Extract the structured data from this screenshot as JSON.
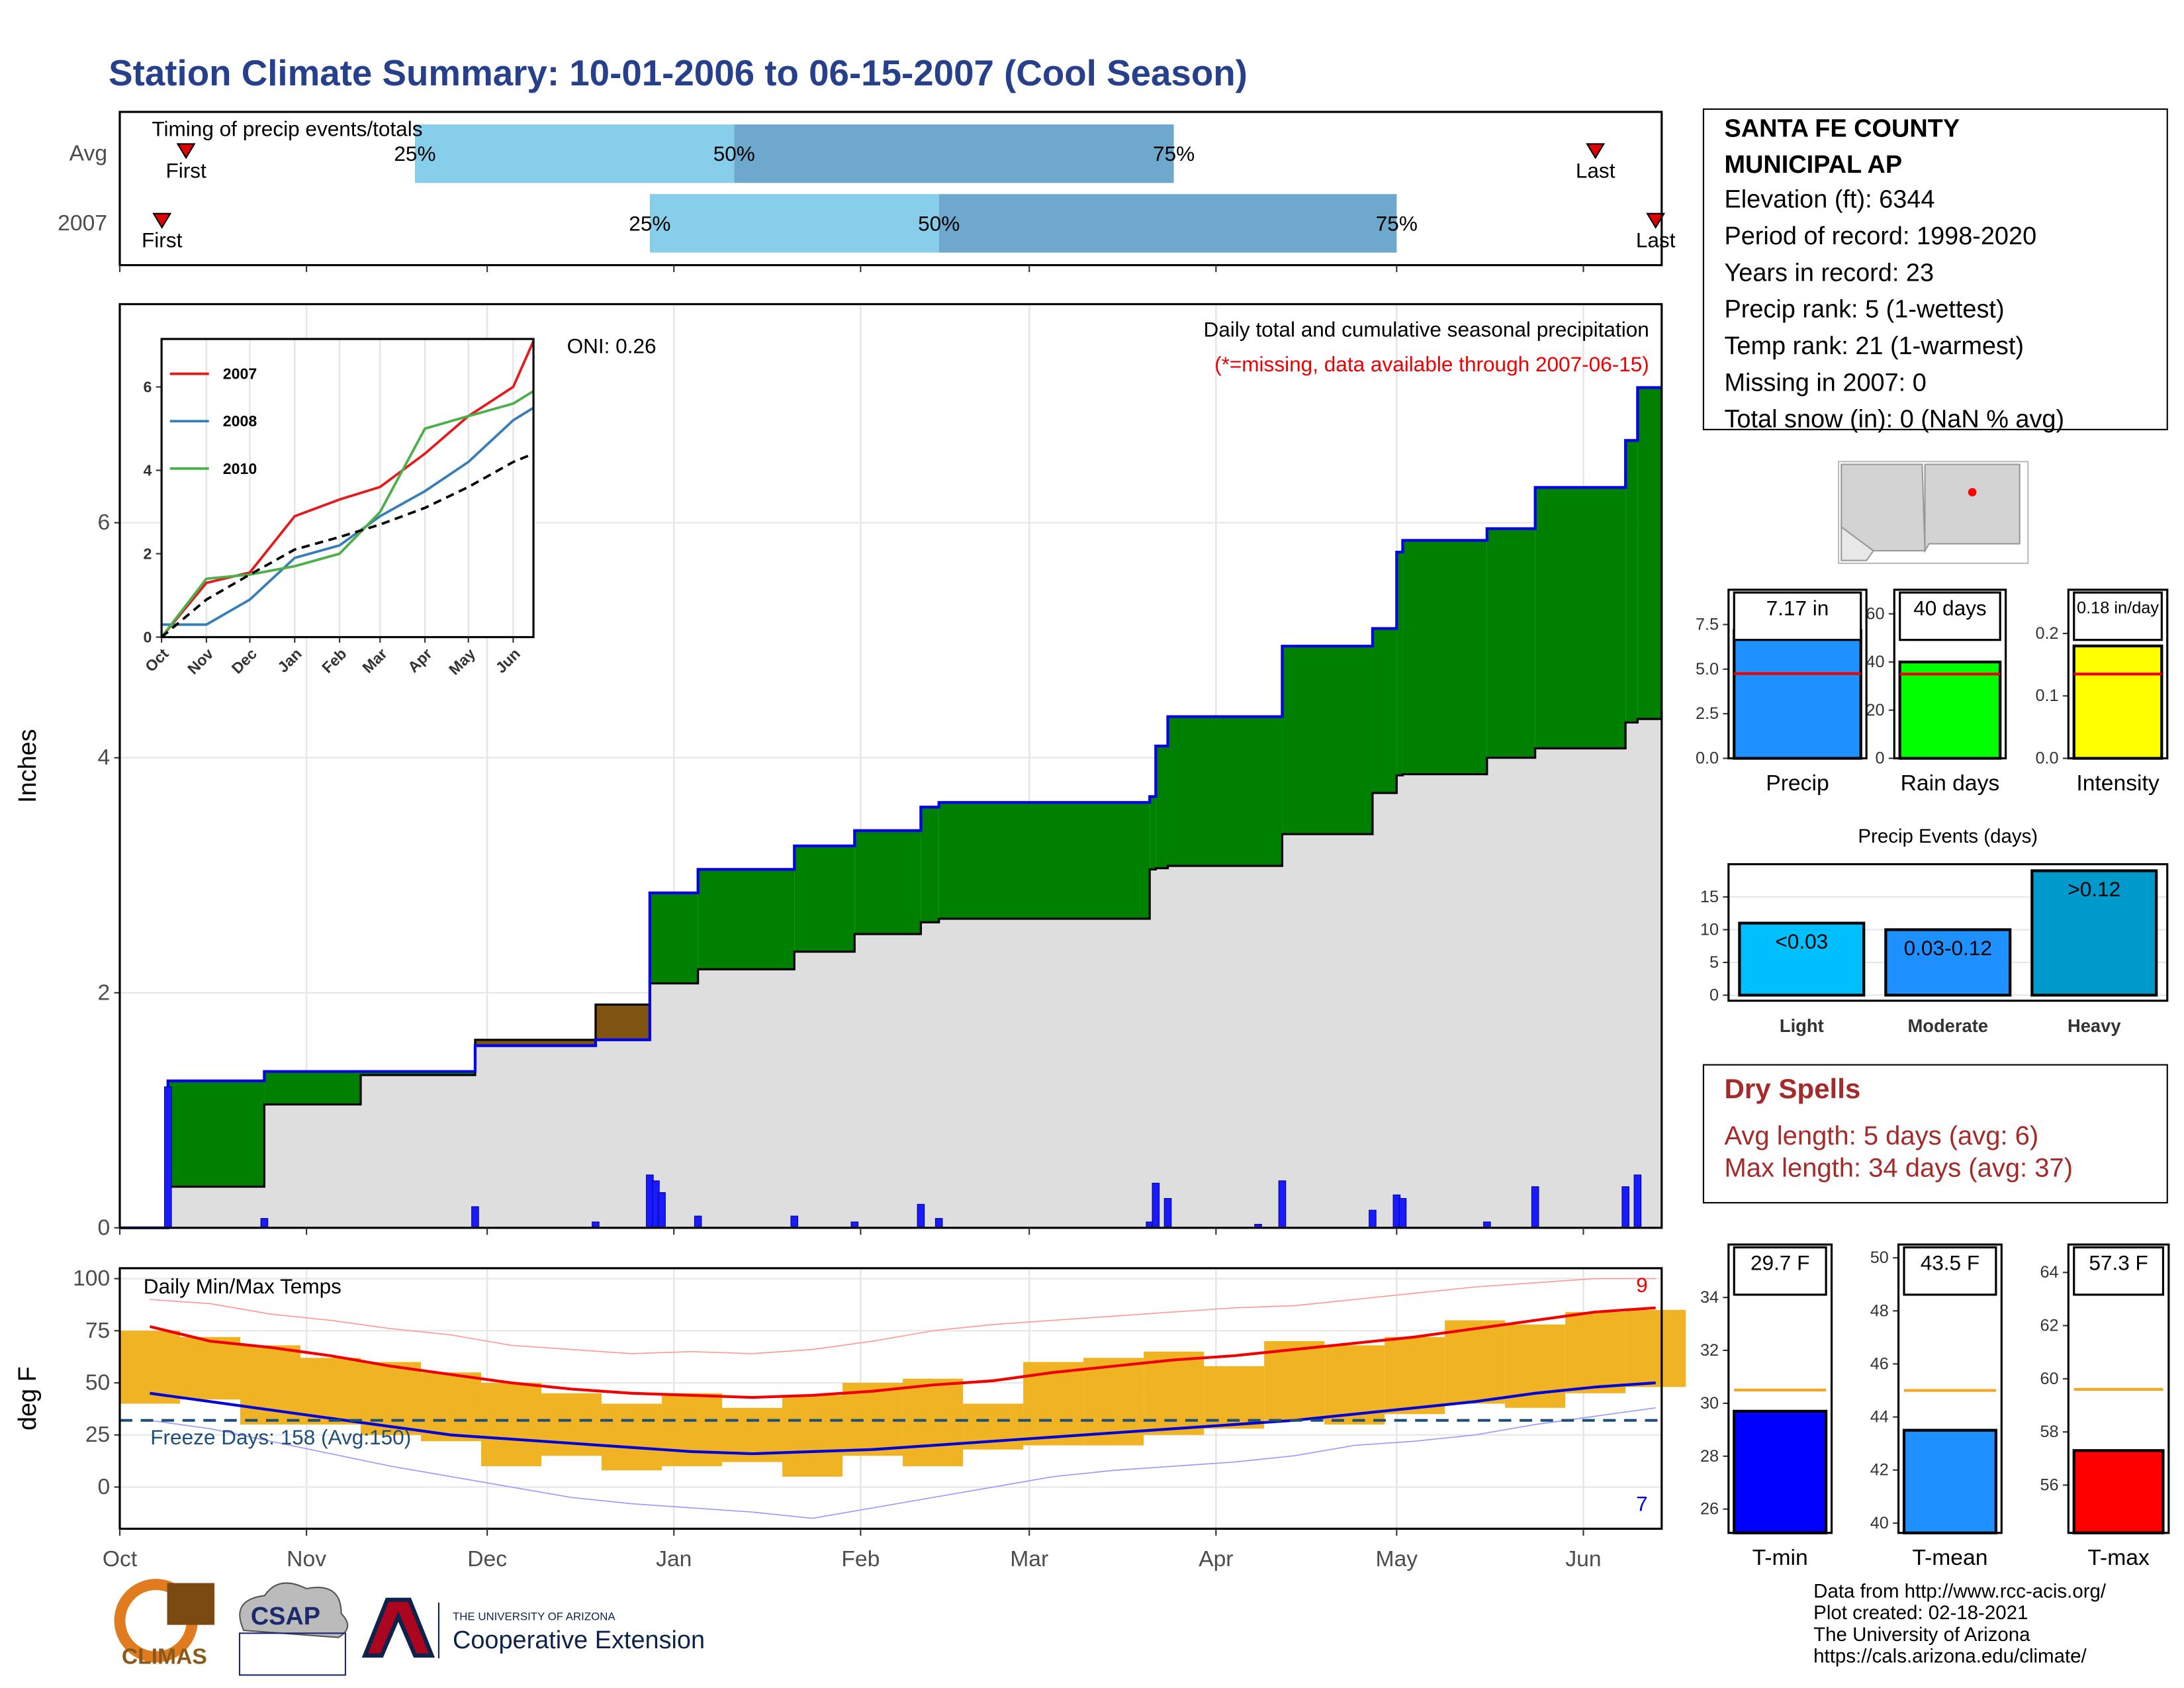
{
  "title": "Station Climate Summary: 10-01-2006 to 06-15-2007 (Cool Season)",
  "chart_data": [
    {
      "type": "timeline",
      "title": "Timing of precip events/totals",
      "categories": [
        "Avg",
        "2007"
      ],
      "xlim": [
        0,
        256
      ],
      "series": [
        {
          "name": "First",
          "color": "#e00000",
          "values": [
            11,
            7
          ]
        },
        {
          "name": "25%",
          "color": "#87ceeb",
          "values": [
            49,
            88
          ]
        },
        {
          "name": "50%",
          "color": "#6fa8cd",
          "values": [
            102,
            136
          ]
        },
        {
          "name": "75%",
          "values": [
            175,
            212
          ]
        },
        {
          "name": "Last",
          "color": "#e00000",
          "values": [
            245,
            255
          ]
        }
      ]
    },
    {
      "type": "area",
      "title": "Daily total and cumulative seasonal precipitation",
      "subtitle": "(*=missing, data available through 2007-06-15)",
      "annotation": "ONI: 0.26",
      "y_label": "Inches",
      "xlim": [
        0,
        256
      ],
      "ylim": [
        0,
        7.86
      ],
      "yticks": [
        0,
        2,
        4,
        6
      ],
      "grid": true,
      "x": [
        0,
        8,
        24,
        40,
        59,
        79,
        88,
        96,
        112,
        122,
        133,
        136,
        171,
        172,
        174,
        193,
        208,
        212,
        213,
        227,
        235,
        250,
        252,
        256
      ],
      "series": [
        {
          "color": "#0000ee",
          "values": [
            0,
            1.25,
            1.33,
            1.33,
            1.55,
            1.6,
            2.85,
            3.05,
            3.25,
            3.38,
            3.58,
            3.62,
            3.67,
            4.1,
            4.35,
            4.95,
            5.1,
            5.75,
            5.85,
            5.95,
            6.3,
            6.7,
            7.15,
            7.15
          ]
        },
        {
          "color": "#dedede",
          "values": [
            0,
            0.35,
            1.05,
            1.3,
            1.6,
            1.9,
            2.08,
            2.2,
            2.35,
            2.5,
            2.6,
            2.63,
            3.05,
            3.06,
            3.08,
            3.35,
            3.7,
            3.85,
            3.86,
            4.0,
            4.08,
            4.3,
            4.33,
            4.4
          ]
        }
      ],
      "above_color": "#008000",
      "below_color": "#7f5410",
      "daily": {
        "color": "#1a1aff",
        "x": [
          8,
          24,
          59,
          79,
          88,
          89,
          90,
          96,
          112,
          122,
          133,
          136,
          171,
          172,
          174,
          189,
          193,
          208,
          212,
          213,
          227,
          235,
          250,
          252
        ],
        "values": [
          1.2,
          0.08,
          0.18,
          0.05,
          0.45,
          0.4,
          0.3,
          0.1,
          0.1,
          0.05,
          0.2,
          0.08,
          0.05,
          0.38,
          0.25,
          0.03,
          0.4,
          0.15,
          0.28,
          0.25,
          0.05,
          0.35,
          0.35,
          0.45
        ]
      },
      "xticks": [
        {
          "value": 0,
          "label": "Oct"
        },
        {
          "value": 31,
          "label": "Nov"
        },
        {
          "value": 61,
          "label": "Dec"
        },
        {
          "value": 92,
          "label": "Jan"
        },
        {
          "value": 123,
          "label": "Feb"
        },
        {
          "value": 151,
          "label": "Mar"
        },
        {
          "value": 182,
          "label": "Apr"
        },
        {
          "value": 212,
          "label": "May"
        },
        {
          "value": 243,
          "label": "Jun"
        }
      ]
    },
    {
      "type": "line",
      "xlim": [
        0,
        257
      ],
      "ylim": [
        0,
        7.15
      ],
      "yticks": [
        0,
        2,
        4,
        6
      ],
      "x": [
        0,
        31,
        61,
        92,
        123,
        151,
        182,
        212,
        243,
        257
      ],
      "series": [
        {
          "name": "2007",
          "color": "#e41a1c",
          "values": [
            0,
            1.3,
            1.55,
            2.9,
            3.3,
            3.6,
            4.4,
            5.3,
            6.0,
            7.1
          ]
        },
        {
          "name": "2008",
          "color": "#377eb8",
          "values": [
            0.3,
            0.3,
            0.9,
            1.9,
            2.2,
            2.9,
            3.5,
            4.2,
            5.2,
            5.5
          ]
        },
        {
          "name": "2010",
          "color": "#4daf4a",
          "values": [
            0,
            1.4,
            1.5,
            1.7,
            2.0,
            3.0,
            5.0,
            5.3,
            5.6,
            5.9
          ]
        },
        {
          "color": "#000000",
          "dash": true,
          "values": [
            0,
            0.9,
            1.5,
            2.1,
            2.4,
            2.7,
            3.1,
            3.6,
            4.2,
            4.4
          ]
        }
      ],
      "xticks": [
        {
          "value": 0,
          "label": "Oct"
        },
        {
          "value": 31,
          "label": "Nov"
        },
        {
          "value": 61,
          "label": "Dec"
        },
        {
          "value": 92,
          "label": "Jan"
        },
        {
          "value": 123,
          "label": "Feb"
        },
        {
          "value": 151,
          "label": "Mar"
        },
        {
          "value": 182,
          "label": "Apr"
        },
        {
          "value": 212,
          "label": "May"
        },
        {
          "value": 243,
          "label": "Jun"
        }
      ]
    },
    {
      "type": "combo",
      "title": "Daily Min/Max Temps",
      "y_label": "deg F",
      "annotation": "Freeze Days: 158 (Avg:150)",
      "max_count": 9,
      "min_count": 7,
      "freeze_line": 32,
      "freeze_color": "#1f4e79",
      "xlim": [
        0,
        256
      ],
      "ylim": [
        -20,
        105
      ],
      "yticks": [
        0,
        25,
        50,
        75,
        100
      ],
      "grid": true,
      "x": [
        0,
        10,
        20,
        30,
        40,
        50,
        60,
        70,
        80,
        90,
        100,
        110,
        120,
        130,
        140,
        150,
        160,
        170,
        180,
        190,
        200,
        210,
        220,
        230,
        240,
        250
      ],
      "bars": {
        "color": "#f0b323",
        "high": [
          75,
          72,
          68,
          62,
          60,
          55,
          50,
          45,
          40,
          45,
          38,
          44,
          50,
          52,
          40,
          60,
          62,
          65,
          58,
          70,
          68,
          72,
          80,
          78,
          84,
          85
        ],
        "low": [
          40,
          42,
          30,
          30,
          25,
          22,
          10,
          15,
          8,
          10,
          12,
          5,
          15,
          10,
          18,
          20,
          20,
          25,
          28,
          32,
          30,
          35,
          40,
          38,
          45,
          48
        ]
      },
      "series": [
        {
          "color": "#ff9a9a",
          "width": 0.8,
          "values": [
            90,
            88,
            83,
            80,
            76,
            73,
            68,
            66,
            64,
            65,
            64,
            66,
            70,
            75,
            78,
            80,
            82,
            84,
            86,
            87,
            90,
            93,
            96,
            98,
            100,
            100
          ]
        },
        {
          "color": "#9a9aff",
          "width": 0.8,
          "values": [
            32,
            28,
            22,
            16,
            10,
            5,
            0,
            -5,
            -8,
            -10,
            -12,
            -15,
            -10,
            -5,
            0,
            5,
            8,
            10,
            12,
            15,
            20,
            22,
            25,
            30,
            34,
            38
          ]
        },
        {
          "color": "#ee0000",
          "width": 2,
          "values": [
            77,
            70,
            67,
            63,
            58,
            54,
            50,
            47,
            45,
            44,
            43,
            44,
            46,
            49,
            51,
            55,
            58,
            61,
            63,
            66,
            69,
            72,
            76,
            80,
            84,
            86
          ]
        },
        {
          "color": "#0000dd",
          "width": 2,
          "values": [
            45,
            41,
            37,
            33,
            29,
            25,
            23,
            21,
            19,
            17,
            16,
            17,
            18,
            20,
            22,
            24,
            26,
            28,
            30,
            32,
            35,
            38,
            41,
            45,
            48,
            50
          ]
        }
      ],
      "xticks": [
        {
          "value": 0,
          "label": "Oct"
        },
        {
          "value": 31,
          "label": "Nov"
        },
        {
          "value": 61,
          "label": "Dec"
        },
        {
          "value": 92,
          "label": "Jan"
        },
        {
          "value": 123,
          "label": "Feb"
        },
        {
          "value": 151,
          "label": "Mar"
        },
        {
          "value": 182,
          "label": "Apr"
        },
        {
          "value": 212,
          "label": "May"
        },
        {
          "value": 243,
          "label": "Jun"
        }
      ]
    },
    {
      "type": "bar",
      "categories": [
        "Precip"
      ],
      "values": [
        7.17
      ],
      "value_labels": [
        "7.17 in"
      ],
      "color": "#1e90ff",
      "average": 4.75,
      "average_color": "#ee0000",
      "ylim": [
        0,
        9.45
      ],
      "yticks": [
        {
          "value": 0,
          "label": "0.0"
        },
        {
          "value": 2.5,
          "label": "2.5"
        },
        {
          "value": 5,
          "label": "5.0"
        },
        {
          "value": 7.5,
          "label": "7.5"
        }
      ]
    },
    {
      "type": "bar",
      "categories": [
        "Rain days"
      ],
      "values": [
        40
      ],
      "value_labels": [
        "40 days"
      ],
      "color": "#00ff00",
      "average": 35,
      "average_color": "#ee0000",
      "ylim": [
        0,
        70
      ],
      "yticks": [
        0,
        20,
        40,
        60
      ]
    },
    {
      "type": "bar",
      "categories": [
        "Intensity"
      ],
      "values": [
        0.18
      ],
      "value_labels": [
        "0.18 in/day"
      ],
      "color": "#ffff00",
      "average": 0.135,
      "average_color": "#ee0000",
      "ylim": [
        0,
        0.27
      ],
      "yticks": [
        {
          "value": 0,
          "label": "0.0"
        },
        {
          "value": 0.1,
          "label": "0.1"
        },
        {
          "value": 0.2,
          "label": "0.2"
        }
      ]
    },
    {
      "type": "bar",
      "title": "Precip Events (days)",
      "categories": [
        "Light",
        "Moderate",
        "Heavy"
      ],
      "values": [
        11,
        10,
        19
      ],
      "value_labels": [
        "<0.03",
        "0.03-0.12",
        ">0.12"
      ],
      "colors": [
        "#00bfff",
        "#1e90ff",
        "#0099cc"
      ],
      "grid": true,
      "ylim": [
        -0.85,
        20
      ],
      "yticks": [
        0,
        5,
        10,
        15
      ]
    },
    {
      "type": "bar",
      "categories": [
        "T-min"
      ],
      "values": [
        29.7
      ],
      "value_labels": [
        "29.7 F"
      ],
      "color": "#0000ff",
      "average": 30.5,
      "average_color": "#f5a623",
      "ylim": [
        25.1,
        36
      ],
      "yticks": [
        26,
        28,
        30,
        32,
        34
      ]
    },
    {
      "type": "bar",
      "categories": [
        "T-mean"
      ],
      "values": [
        43.5
      ],
      "value_labels": [
        "43.5 F"
      ],
      "color": "#1e90ff",
      "average": 45,
      "average_color": "#f5a623",
      "ylim": [
        39.63,
        50.5
      ],
      "yticks": [
        40,
        42,
        44,
        46,
        48,
        50
      ]
    },
    {
      "type": "bar",
      "categories": [
        "T-max"
      ],
      "values": [
        57.3
      ],
      "value_labels": [
        "57.3 F"
      ],
      "color": "#ff0000",
      "average": 59.6,
      "average_color": "#f5a623",
      "ylim": [
        54.2,
        65.05
      ],
      "yticks": [
        56,
        58,
        60,
        62,
        64
      ]
    }
  ],
  "station": {
    "name_lines": [
      "SANTA FE COUNTY",
      "MUNICIPAL AP"
    ],
    "lines": [
      "Elevation (ft): 6344",
      "Period of record: 1998-2020",
      "Years in record: 23",
      "Precip rank: 5 (1-wettest)",
      "Temp rank: 21 (1-warmest)",
      "Missing in 2007: 0",
      "Total snow (in): 0 (NaN % avg)"
    ]
  },
  "dry_spells": {
    "title": "Dry Spells",
    "lines": [
      "Avg length: 5 days (avg: 6)",
      "Max length: 34 days (avg: 37)"
    ]
  },
  "footer": [
    "Data from http://www.rcc-acis.org/",
    "Plot created: 02-18-2021",
    "The University of Arizona",
    "https://cals.arizona.edu/climate/"
  ],
  "logos": [
    "CLIMAS",
    "CSAP",
    "THE UNIVERSITY OF ARIZONA",
    "Cooperative Extension"
  ]
}
